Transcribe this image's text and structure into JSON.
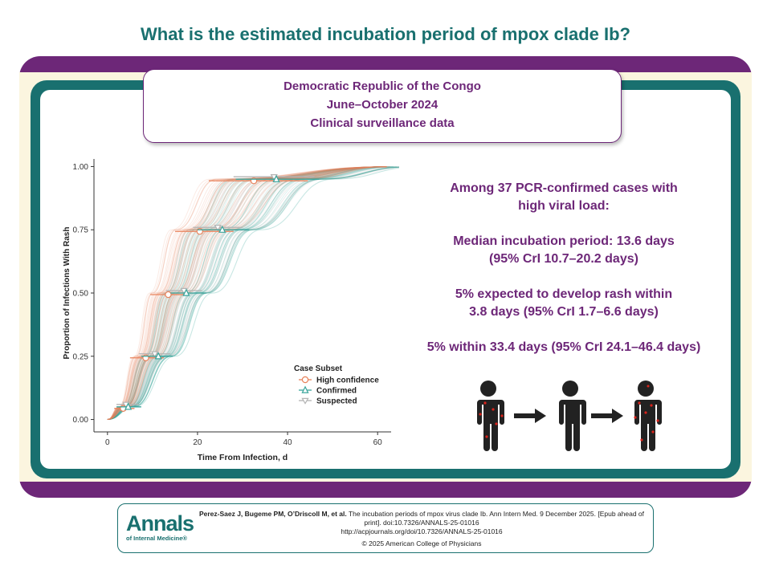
{
  "page_title": "What is the estimated incubation period of mpox clade Ib?",
  "header": {
    "line1": "Democratic Republic of the Congo",
    "line2": "June–October 2024",
    "line3": "Clinical surveillance data"
  },
  "findings": {
    "p1_line1": "Among 37 PCR-confirmed cases with",
    "p1_line2": "high viral load:",
    "p2_line1": "Median incubation period: 13.6 days",
    "p2_line2": "(95% CrI 10.7–20.2 days)",
    "p3_line1": "5% expected to develop rash within",
    "p3_line2": "3.8 days (95% CrI 1.7–6.6 days)",
    "p4_line1": "5% within 33.4 days (95% CrI 24.1–46.4 days)"
  },
  "icons": [
    "person-with-rash-icon",
    "right-arrow-icon",
    "person-icon",
    "right-arrow-icon",
    "person-with-rash-icon"
  ],
  "footer": {
    "logo_main": "Annals",
    "logo_sub": "of Internal Medicine®",
    "citation_authors": "Perez-Saez J, Bugeme PM, O’Driscoll M, et al.",
    "citation_text": "The incubation periods of mpox virus clade Ib. Ann Intern Med. 9 December 2025. [Epub ahead of print]. doi:10.7326/ANNALS-25-01016",
    "citation_url": "http://acpjournals.org/doi/10.7326/ANNALS-25-01016",
    "copyright": "© 2025 American College of Physicians"
  },
  "colors": {
    "purple": "#6d2778",
    "teal": "#19706f",
    "high_confidence": "#e8825b",
    "confirmed": "#3aa59c",
    "suspected": "#b4b4b4"
  },
  "chart_data": {
    "type": "line",
    "xlabel": "Time From Infection, d",
    "ylabel": "Proportion of Infections With Rash",
    "xlim": [
      -3,
      63
    ],
    "ylim": [
      -0.03,
      1.03
    ],
    "x_ticks": [
      0,
      20,
      40,
      60
    ],
    "y_ticks": [
      0.0,
      0.25,
      0.5,
      0.75,
      1.0
    ],
    "x_tick_labels": [
      "0",
      "20",
      "40",
      "60"
    ],
    "y_tick_labels": [
      "0.00",
      "0.25",
      "0.50",
      "0.75",
      "1.00"
    ],
    "grid": false,
    "legend": {
      "title": "Case Subset",
      "position": "bottom-right",
      "entries": [
        "High confidence",
        "Confirmed",
        "Suspected"
      ]
    },
    "series": [
      {
        "name": "High confidence",
        "color": "#e8825b",
        "marker": "circle",
        "points": [
          {
            "p": 0.05,
            "x": 3.5,
            "lo": 1.5,
            "hi": 6.0
          },
          {
            "p": 0.25,
            "x": 8.5,
            "lo": 5.0,
            "hi": 12.5
          },
          {
            "p": 0.5,
            "x": 13.5,
            "lo": 9.5,
            "hi": 18.0
          },
          {
            "p": 0.75,
            "x": 20.5,
            "lo": 15.0,
            "hi": 28.0
          },
          {
            "p": 0.95,
            "x": 32.5,
            "lo": 22.5,
            "hi": 44.5
          }
        ]
      },
      {
        "name": "Confirmed",
        "color": "#3aa59c",
        "marker": "triangle",
        "points": [
          {
            "p": 0.05,
            "x": 4.6,
            "lo": 2.0,
            "hi": 7.5
          },
          {
            "p": 0.25,
            "x": 11.3,
            "lo": 7.5,
            "hi": 14.5
          },
          {
            "p": 0.5,
            "x": 17.5,
            "lo": 14.0,
            "hi": 22.0
          },
          {
            "p": 0.75,
            "x": 25.5,
            "lo": 20.0,
            "hi": 31.5
          },
          {
            "p": 0.95,
            "x": 37.5,
            "lo": 28.5,
            "hi": 47.0
          }
        ]
      },
      {
        "name": "Suspected",
        "color": "#b4b4b4",
        "marker": "triangle-down",
        "points": [
          {
            "p": 0.05,
            "x": 4.1,
            "lo": 2.0,
            "hi": 7.0
          },
          {
            "p": 0.25,
            "x": 10.5,
            "lo": 7.0,
            "hi": 14.0
          },
          {
            "p": 0.5,
            "x": 17.0,
            "lo": 13.0,
            "hi": 21.0
          },
          {
            "p": 0.75,
            "x": 24.5,
            "lo": 19.0,
            "hi": 30.0
          },
          {
            "p": 0.95,
            "x": 37.0,
            "lo": 28.0,
            "hi": 46.0
          }
        ]
      }
    ]
  }
}
